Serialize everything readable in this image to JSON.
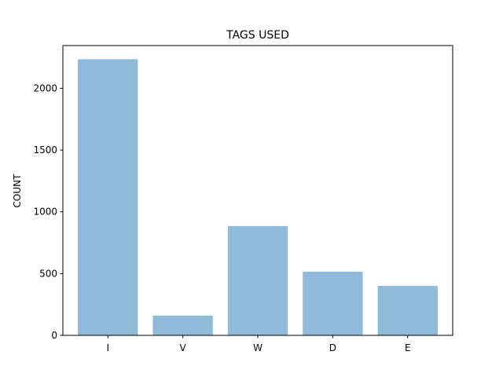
{
  "chart_data": {
    "type": "bar",
    "title": "TAGS USED",
    "xlabel": "",
    "ylabel": "COUNT",
    "categories": [
      "I",
      "V",
      "W",
      "D",
      "E"
    ],
    "values": [
      2235,
      160,
      885,
      515,
      400
    ],
    "ylim": [
      0,
      2346
    ],
    "yticks": [
      0,
      500,
      1000,
      1500,
      2000
    ],
    "bar_color": "#8fbad9",
    "grid": false,
    "legend": "none"
  }
}
